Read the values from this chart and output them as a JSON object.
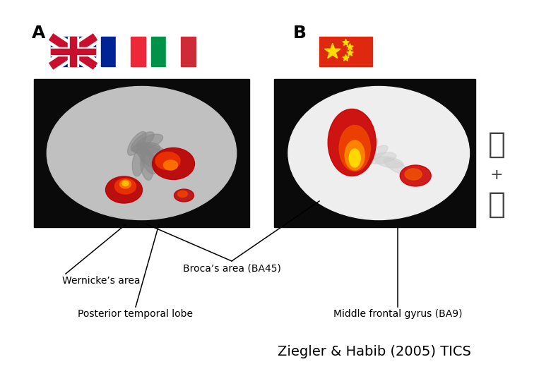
{
  "panel_A_label": "A",
  "panel_B_label": "B",
  "label_wernicke": "Wernicke’s area",
  "label_broca": "Broca’s area (BA45)",
  "label_posterior": "Posterior temporal lobe",
  "label_middle_frontal": "Middle frontal gyrus (BA9)",
  "citation": "Ziegler & Habib (2005) TICS",
  "chinese_char1": "电",
  "chinese_plus": "+",
  "chinese_char2": "店",
  "bg_color": "#ffffff",
  "text_color": "#000000"
}
